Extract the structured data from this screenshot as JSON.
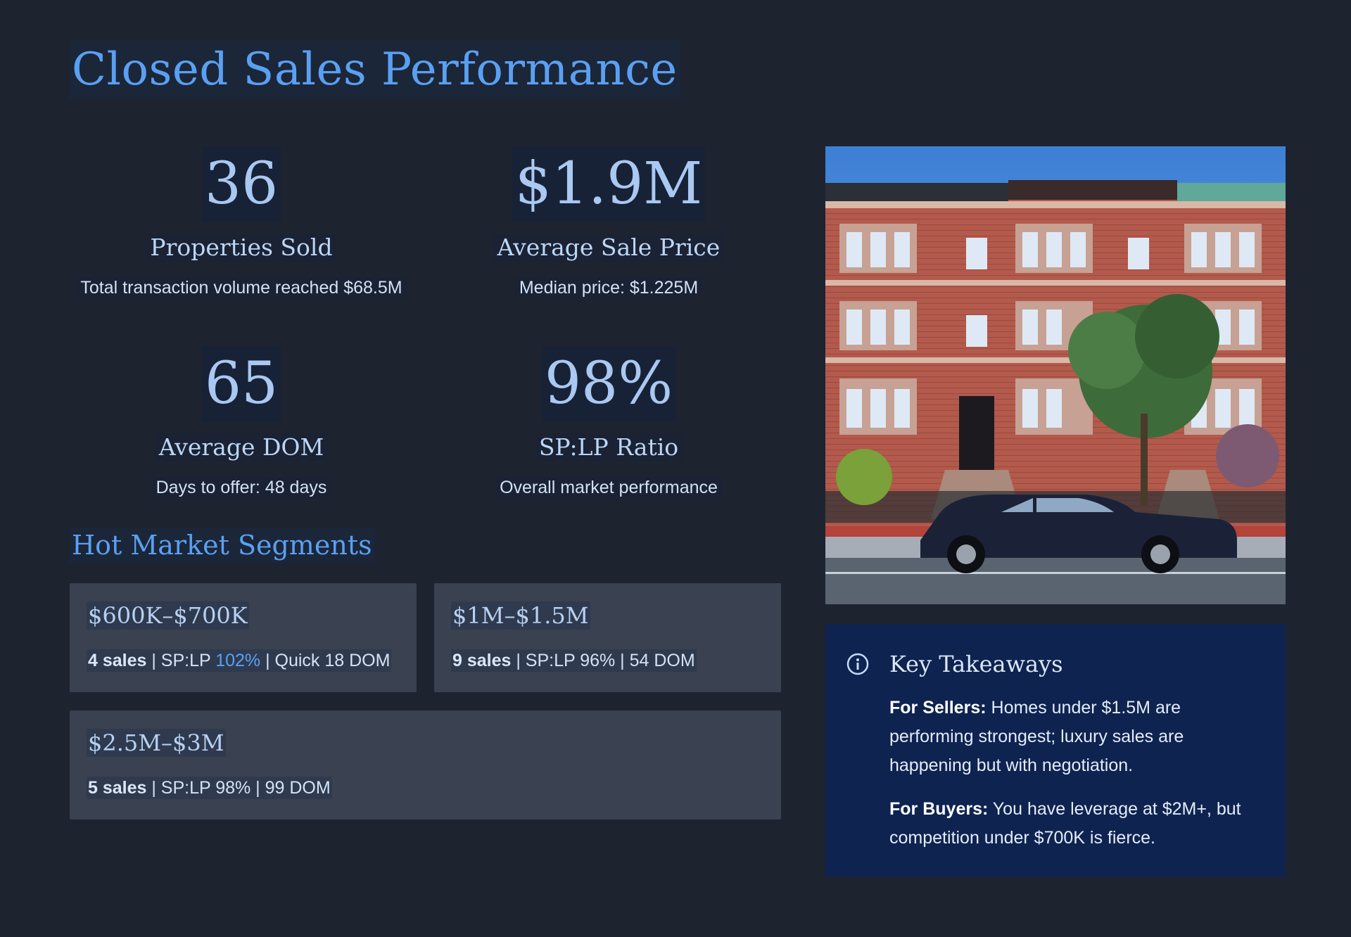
{
  "page": {
    "title": "Closed Sales Performance"
  },
  "stats": [
    {
      "value": "36",
      "label": "Properties Sold",
      "sub": "Total transaction volume reached $68.5M"
    },
    {
      "value": "$1.9M",
      "label": "Average Sale Price",
      "sub": "Median price: $1.225M"
    },
    {
      "value": "65",
      "label": "Average DOM",
      "sub": "Days to offer: 48 days"
    },
    {
      "value": "98%",
      "label": "SP:LP Ratio",
      "sub": "Overall market performance"
    }
  ],
  "segments": {
    "title": "Hot Market Segments",
    "items": [
      {
        "range": "$600K–$700K",
        "sales": "4 sales",
        "sep1": " | SP:LP ",
        "splp": "102%",
        "rest": " | Quick 18 DOM"
      },
      {
        "range": "$1M–$1.5M",
        "sales": "9 sales",
        "sep1": " | SP:LP ",
        "splp": "96%",
        "rest": " | 54 DOM"
      },
      {
        "range": "$2.5M–$3M",
        "sales": "5 sales",
        "sep1": " | SP:LP ",
        "splp": "98%",
        "rest": " | 99 DOM"
      }
    ]
  },
  "takeaways": {
    "title": "Key Takeaways",
    "icon": "info-icon",
    "sellers_label": "For Sellers:",
    "sellers_text": " Homes under $1.5M are performing strongest; luxury sales are happening but with negotiation.",
    "buyers_label": "For Buyers:",
    "buyers_text": " You have leverage at $2M+, but competition under $700K is fierce."
  },
  "colors": {
    "background": "#1e2330",
    "accent": "#5aa0f2",
    "panel": "#0e2350",
    "card": "#3a4150"
  }
}
